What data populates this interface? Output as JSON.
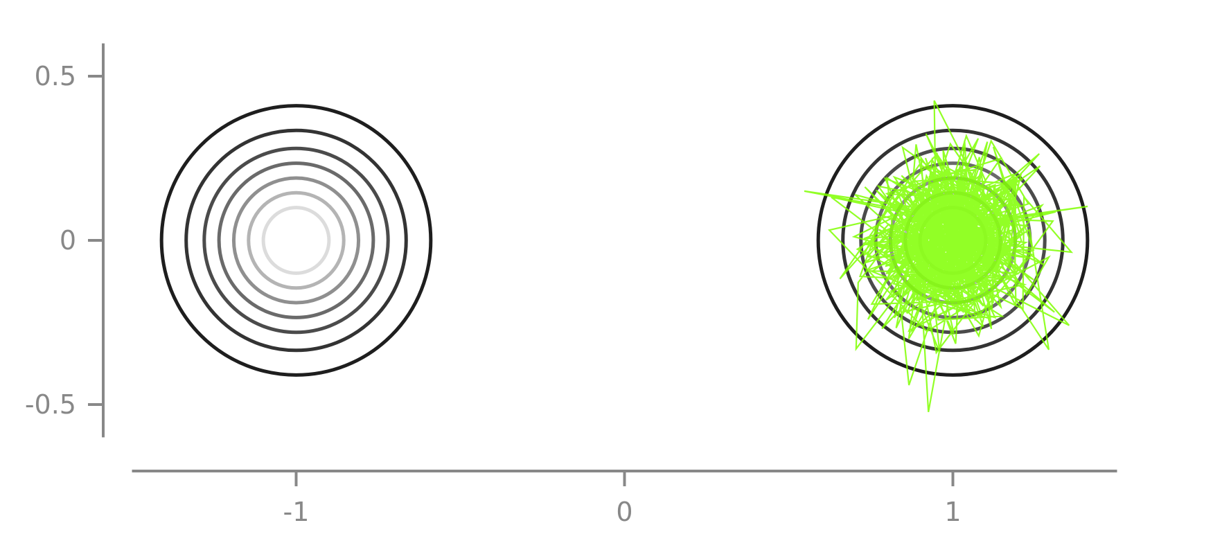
{
  "chart_data": {
    "type": "line",
    "title": "",
    "xlabel": "",
    "ylabel": "",
    "xlim": [
      -1.5,
      1.5
    ],
    "ylim": [
      -0.6,
      0.6
    ],
    "grid": false,
    "legend": "none",
    "x_ticks": [
      {
        "value": -1,
        "label": "-1"
      },
      {
        "value": 0,
        "label": "0"
      },
      {
        "value": 1,
        "label": "1"
      }
    ],
    "y_ticks": [
      {
        "value": 0.5,
        "label": "0.5"
      },
      {
        "value": 0,
        "label": "0"
      },
      {
        "value": -0.5,
        "label": "-0.5"
      }
    ],
    "contour_groups": [
      {
        "center": [
          -1,
          0
        ],
        "contours": [
          {
            "radius": 0.41,
            "color": "#1e1e1e"
          },
          {
            "radius": 0.335,
            "color": "#333333"
          },
          {
            "radius": 0.28,
            "color": "#4b4b4b"
          },
          {
            "radius": 0.235,
            "color": "#6a6a6a"
          },
          {
            "radius": 0.19,
            "color": "#8f8f8f"
          },
          {
            "radius": 0.145,
            "color": "#b4b4b4"
          },
          {
            "radius": 0.1,
            "color": "#dcdcdc"
          }
        ]
      },
      {
        "center": [
          1,
          0
        ],
        "contours": [
          {
            "radius": 0.41,
            "color": "#1e1e1e"
          },
          {
            "radius": 0.335,
            "color": "#333333"
          },
          {
            "radius": 0.28,
            "color": "#4b4b4b"
          },
          {
            "radius": 0.235,
            "color": "#6a6a6a"
          },
          {
            "radius": 0.19,
            "color": "#8f8f8f"
          },
          {
            "radius": 0.145,
            "color": "#b4b4b4"
          },
          {
            "radius": 0.1,
            "color": "#dcdcdc"
          }
        ]
      }
    ],
    "sample_trace": {
      "color": "#7fff00",
      "center": [
        1,
        0
      ],
      "spread": 0.13,
      "num_points": 600
    }
  }
}
